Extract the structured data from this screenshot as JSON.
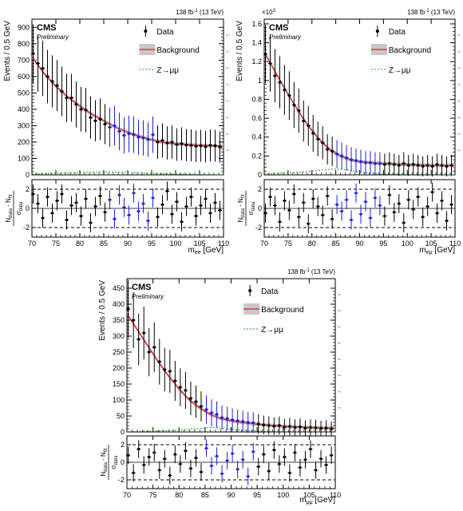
{
  "chart_data": [
    {
      "type": "scatter",
      "experiment": "CMS",
      "status": "Preliminary",
      "lumi_label": "138 fb",
      "lumi_sup": "-1",
      "energy_label": "(13 TeV)",
      "y_multiplier": "",
      "xlabel": "m",
      "xlabel_sub": "ee",
      "xlabel_unit": "[GeV]",
      "ylabel": "Events / 0.5 GeV",
      "ratio_ylabel_num": "N",
      "ratio_ylabel_num_sub": "data",
      "ratio_ylabel_minus": "- N",
      "ratio_ylabel_fit_sub": "fit",
      "ratio_ylabel_den": "σ",
      "ratio_ylabel_den_sub": "data",
      "xlim": [
        70,
        110
      ],
      "ylim": [
        0,
        950
      ],
      "ratio_ylim": [
        -3,
        3
      ],
      "xticks": [
        70,
        75,
        80,
        85,
        90,
        95,
        100,
        105,
        110
      ],
      "yticks": [
        0,
        100,
        200,
        300,
        400,
        500,
        600,
        700,
        800,
        900
      ],
      "ytick_labels": [
        "0",
        "100",
        "200",
        "300",
        "400",
        "500",
        "600",
        "700",
        "800",
        "900"
      ],
      "ratio_yticks": [
        -2,
        0,
        2
      ],
      "legend": [
        "Data",
        "Background",
        "Z→μμ"
      ],
      "background_fit": {
        "x": [
          70,
          72.5,
          75,
          77.5,
          80,
          82.5,
          85,
          87.5,
          90,
          92.5,
          95,
          97.5,
          100,
          102.5,
          105,
          107.5,
          110
        ],
        "y": [
          720,
          620,
          540,
          475,
          420,
          370,
          330,
          290,
          260,
          235,
          215,
          198,
          190,
          185,
          180,
          178,
          175
        ]
      },
      "signal": {
        "x": [
          70,
          74,
          78,
          82,
          86,
          90,
          94,
          98,
          102,
          106,
          110
        ],
        "y": [
          5,
          8,
          12,
          16,
          18,
          15,
          10,
          6,
          4,
          2,
          1
        ]
      },
      "data_points": {
        "x": [
          70.25,
          71.25,
          72.25,
          73.25,
          74.25,
          75.25,
          76.25,
          77.25,
          78.25,
          79.25,
          80.25,
          81.25,
          82.25,
          83.25,
          84.25,
          85.25,
          86.25,
          87.25,
          88.25,
          89.25,
          90.25,
          91.25,
          92.25,
          93.25,
          94.25,
          95.25,
          96.25,
          97.25,
          98.25,
          99.25,
          100.25,
          101.25,
          102.25,
          103.25,
          104.25,
          105.25,
          106.25,
          107.25,
          108.25,
          109.25
        ],
        "y": [
          740,
          680,
          650,
          600,
          570,
          545,
          510,
          470,
          470,
          430,
          400,
          395,
          350,
          330,
          340,
          310,
          290,
          300,
          265,
          240,
          250,
          245,
          230,
          225,
          215,
          245,
          200,
          210,
          195,
          200,
          185,
          190,
          182,
          180,
          175,
          178,
          172,
          180,
          178,
          170
        ]
      },
      "ratio_points": [
        1.5,
        0.5,
        -1.0,
        1.2,
        -0.5,
        0.8,
        1.5,
        -1.2,
        0.3,
        0.6,
        -0.8,
        1.0,
        -1.5,
        0.2,
        1.3,
        -0.4,
        0.9,
        -1.1,
        1.4,
        0.1,
        -0.7,
        1.6,
        -0.3,
        0.5,
        -1.3,
        1.1,
        -0.9,
        0.4,
        1.8,
        -0.6,
        0.7,
        -1.4,
        0.2,
        1.2,
        -0.8,
        0.3,
        1.0,
        -0.5,
        0.6,
        -0.2
      ],
      "signal_region": [
        86,
        96
      ]
    },
    {
      "type": "scatter",
      "experiment": "CMS",
      "status": "Preliminary",
      "lumi_label": "138 fb",
      "lumi_sup": "-1",
      "energy_label": "(13 TeV)",
      "y_multiplier": "×10",
      "y_multiplier_sup": "3",
      "xlabel": "m",
      "xlabel_sub": "eμ",
      "xlabel_unit": "[GeV]",
      "ylabel": "Events / 0.5 GeV",
      "ratio_ylabel_num": "N",
      "ratio_ylabel_num_sub": "data",
      "ratio_ylabel_minus": "- N",
      "ratio_ylabel_fit_sub": "fit",
      "ratio_ylabel_den": "σ",
      "ratio_ylabel_den_sub": "data",
      "xlim": [
        70,
        110
      ],
      "ylim": [
        0,
        1.65
      ],
      "ratio_ylim": [
        -3,
        3
      ],
      "xticks": [
        70,
        75,
        80,
        85,
        90,
        95,
        100,
        105,
        110
      ],
      "yticks": [
        0,
        0.2,
        0.4,
        0.6,
        0.8,
        1.0,
        1.2,
        1.4,
        1.6
      ],
      "ytick_labels": [
        "0",
        "0.2",
        "0.4",
        "0.6",
        "0.8",
        "1",
        "1.2",
        "1.4",
        "1.6"
      ],
      "ratio_yticks": [
        -2,
        0,
        2
      ],
      "legend": [
        "Data",
        "Background",
        "Z→μμ"
      ],
      "background_fit": {
        "x": [
          70,
          72,
          74,
          76,
          78,
          80,
          82,
          84,
          86,
          88,
          90,
          92,
          95,
          100,
          105,
          110
        ],
        "y": [
          1.3,
          1.12,
          0.94,
          0.77,
          0.61,
          0.47,
          0.35,
          0.26,
          0.2,
          0.16,
          0.14,
          0.13,
          0.12,
          0.11,
          0.1,
          0.1
        ]
      },
      "signal": {
        "x": [
          70,
          74,
          78,
          80,
          82,
          84,
          86,
          88,
          90,
          94,
          98,
          102,
          106,
          110
        ],
        "y": [
          0.01,
          0.02,
          0.03,
          0.04,
          0.05,
          0.06,
          0.06,
          0.05,
          0.03,
          0.01,
          0.005,
          0.003,
          0.002,
          0.001
        ]
      },
      "data_points": {
        "x": [
          70.25,
          71.25,
          72.25,
          73.25,
          74.25,
          75.25,
          76.25,
          77.25,
          78.25,
          79.25,
          80.25,
          81.25,
          82.25,
          83.25,
          84.25,
          85.25,
          86.25,
          87.25,
          88.25,
          89.25,
          90.25,
          91.25,
          92.25,
          93.25,
          94.25,
          95.25,
          96.25,
          97.25,
          98.25,
          99.25,
          100.25,
          101.25,
          102.25,
          103.25,
          104.25,
          105.25,
          106.25,
          107.25,
          108.25,
          109.25
        ],
        "y": [
          1.28,
          1.18,
          1.05,
          0.98,
          0.9,
          0.84,
          0.74,
          0.68,
          0.57,
          0.52,
          0.44,
          0.38,
          0.34,
          0.27,
          0.25,
          0.22,
          0.2,
          0.18,
          0.16,
          0.15,
          0.14,
          0.13,
          0.13,
          0.12,
          0.12,
          0.11,
          0.12,
          0.11,
          0.1,
          0.12,
          0.1,
          0.11,
          0.1,
          0.09,
          0.1,
          0.09,
          0.11,
          0.1,
          0.09,
          0.1
        ]
      },
      "ratio_points": [
        -0.5,
        1.2,
        0.3,
        -1.4,
        0.8,
        -0.2,
        1.5,
        -0.9,
        0.6,
        -1.6,
        1.0,
        0.2,
        -0.7,
        1.3,
        -1.1,
        0.4,
        -0.3,
        0.9,
        -1.2,
        1.6,
        -0.6,
        0.7,
        -1.0,
        1.1,
        0.3,
        -0.8,
        1.4,
        -0.4,
        0.5,
        -1.5,
        0.9,
        -0.1,
        1.2,
        -0.9,
        0.2,
        1.7,
        -0.5,
        0.8,
        -1.3,
        0.4
      ],
      "signal_region": [
        85,
        95
      ]
    },
    {
      "type": "scatter",
      "experiment": "CMS",
      "status": "Preliminary",
      "lumi_label": "138 fb",
      "lumi_sup": "-1",
      "energy_label": "(13 TeV)",
      "y_multiplier": "",
      "xlabel": "m",
      "xlabel_sub": "μμ",
      "xlabel_unit": "[GeV]",
      "ylabel": "Events / 0.5 GeV",
      "ratio_ylabel_num": "N",
      "ratio_ylabel_num_sub": "data",
      "ratio_ylabel_minus": "- N",
      "ratio_ylabel_fit_sub": "fit",
      "ratio_ylabel_den": "σ",
      "ratio_ylabel_den_sub": "data",
      "xlim": [
        70,
        110
      ],
      "ylim": [
        0,
        480
      ],
      "ratio_ylim": [
        -3,
        3
      ],
      "xticks": [
        70,
        75,
        80,
        85,
        90,
        95,
        100,
        105,
        110
      ],
      "yticks": [
        0,
        50,
        100,
        150,
        200,
        250,
        300,
        350,
        400,
        450
      ],
      "ytick_labels": [
        "0",
        "50",
        "100",
        "150",
        "200",
        "250",
        "300",
        "350",
        "400",
        "450"
      ],
      "ratio_yticks": [
        -2,
        0,
        2
      ],
      "legend": [
        "Data",
        "Background",
        "Z→μμ"
      ],
      "background_fit": {
        "x": [
          70,
          72,
          74,
          76,
          78,
          80,
          82,
          84,
          86,
          88,
          90,
          92,
          95,
          100,
          105,
          110
        ],
        "y": [
          370,
          320,
          270,
          220,
          175,
          135,
          100,
          75,
          55,
          42,
          35,
          30,
          24,
          18,
          14,
          12
        ]
      },
      "signal": {
        "x": [
          70,
          74,
          78,
          80,
          82,
          84,
          86,
          88,
          90,
          92,
          94,
          96,
          100,
          105,
          110
        ],
        "y": [
          1,
          2,
          4,
          6,
          8,
          11,
          14,
          12,
          9,
          6,
          4,
          2,
          1,
          0.5,
          0.2
        ]
      },
      "data_points": {
        "x": [
          70.25,
          71.25,
          72.25,
          73.25,
          74.25,
          75.25,
          76.25,
          77.25,
          78.25,
          79.25,
          80.25,
          81.25,
          82.25,
          83.25,
          84.25,
          85.25,
          86.25,
          87.25,
          88.25,
          89.25,
          90.25,
          91.25,
          92.25,
          93.25,
          94.25,
          95.25,
          96.25,
          97.25,
          98.25,
          99.25,
          100.25,
          101.25,
          102.25,
          103.25,
          104.25,
          105.25,
          106.25,
          107.25,
          108.25,
          109.25
        ],
        "y": [
          385,
          350,
          290,
          310,
          250,
          265,
          220,
          195,
          190,
          160,
          140,
          130,
          105,
          95,
          80,
          70,
          60,
          55,
          45,
          42,
          38,
          35,
          33,
          30,
          29,
          25,
          22,
          20,
          18,
          20,
          15,
          17,
          14,
          16,
          12,
          14,
          13,
          11,
          12,
          10
        ]
      },
      "ratio_points": [
        0.8,
        -1.2,
        1.5,
        -0.3,
        0.6,
        1.1,
        -0.9,
        0.4,
        -1.5,
        0.9,
        -0.2,
        1.3,
        -0.7,
        0.5,
        -1.1,
        1.6,
        -0.4,
        0.7,
        -1.3,
        0.2,
        1.0,
        -0.8,
        0.3,
        -1.6,
        1.2,
        -0.5,
        0.9,
        -1.0,
        1.4,
        -0.2,
        0.6,
        -1.2,
        1.1,
        -0.6,
        0.3,
        1.5,
        -0.9,
        0.4,
        -0.3,
        0.8
      ],
      "signal_region": [
        85,
        95
      ]
    }
  ]
}
